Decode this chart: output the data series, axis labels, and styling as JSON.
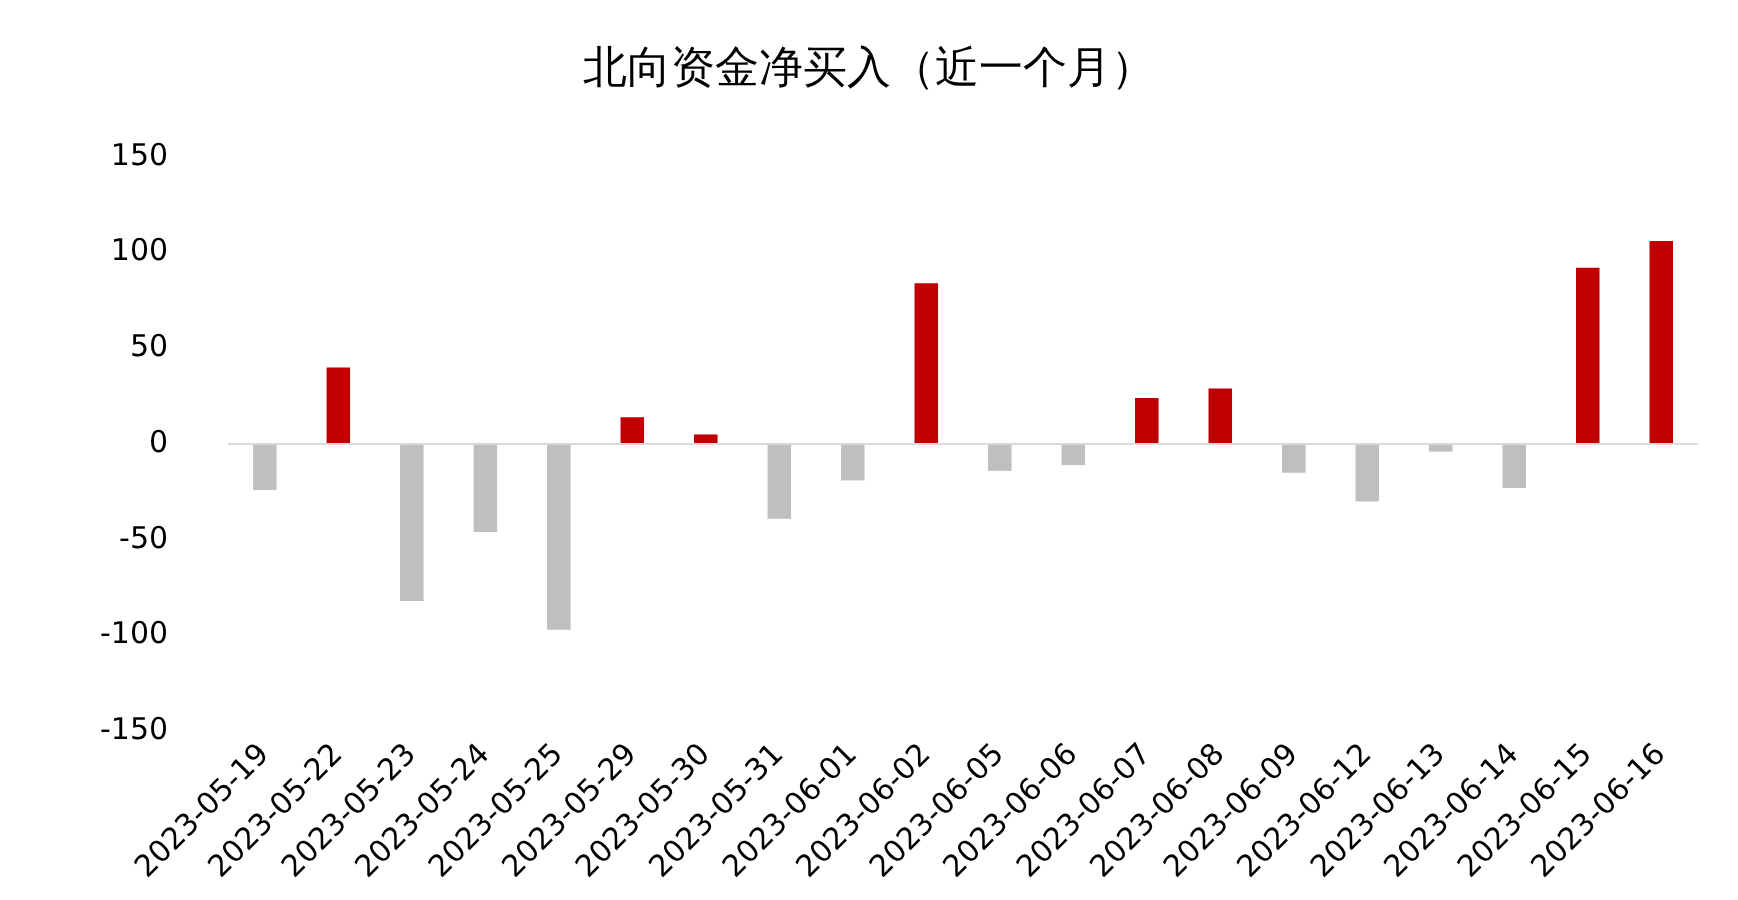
{
  "chart_data": {
    "type": "bar",
    "title": "北向资金净买入（近一个月）",
    "categories": [
      "2023-05-19",
      "2023-05-22",
      "2023-05-23",
      "2023-05-24",
      "2023-05-25",
      "2023-05-29",
      "2023-05-30",
      "2023-05-31",
      "2023-06-01",
      "2023-06-02",
      "2023-06-05",
      "2023-06-06",
      "2023-06-07",
      "2023-06-08",
      "2023-06-09",
      "2023-06-12",
      "2023-06-13",
      "2023-06-14",
      "2023-06-15",
      "2023-06-16"
    ],
    "values": [
      -24,
      40,
      -82,
      -46,
      -97,
      14,
      5,
      -39,
      -19,
      84,
      -14,
      -11,
      24,
      29,
      -15,
      -30,
      -4,
      -23,
      92,
      106
    ],
    "colors": [
      "#bfbfbf",
      "#c00000",
      "#bfbfbf",
      "#bfbfbf",
      "#bfbfbf",
      "#c00000",
      "#c00000",
      "#bfbfbf",
      "#bfbfbf",
      "#c00000",
      "#bfbfbf",
      "#bfbfbf",
      "#c00000",
      "#c00000",
      "#bfbfbf",
      "#bfbfbf",
      "#bfbfbf",
      "#bfbfbf",
      "#c00000",
      "#c00000"
    ],
    "ylim": [
      -150,
      150
    ],
    "yticks": [
      -150,
      -100,
      -50,
      0,
      50,
      100,
      150
    ],
    "grid": false,
    "legend": false,
    "ref_lines": [
      {
        "axis": "y",
        "value": 0,
        "color": "#d9d9d9"
      }
    ]
  }
}
